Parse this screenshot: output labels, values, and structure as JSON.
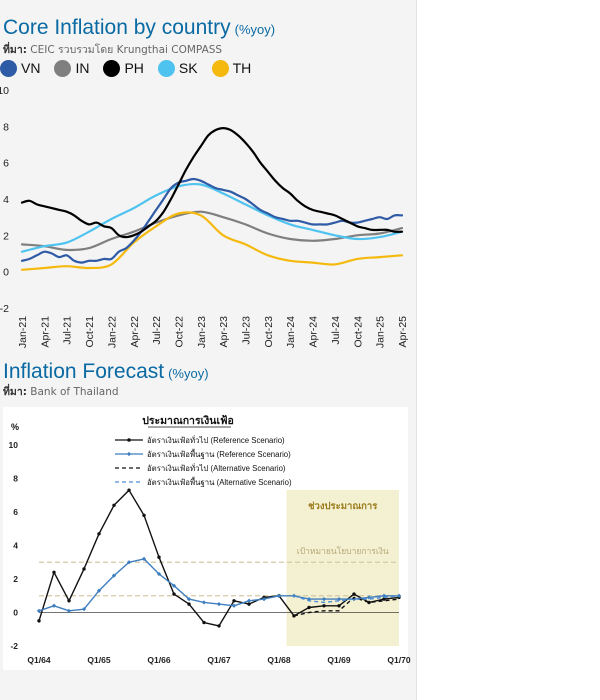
{
  "chart1": {
    "title": "Core Inflation by country",
    "unit": "(%yoy)",
    "source_label": "ที่มา:",
    "source_text": "CEIC รวบรวมโดย Krungthai COMPASS",
    "colors": {
      "VN": "#2f5aa6",
      "IN": "#7f7f7f",
      "PH": "#000000",
      "SK": "#4fc3f0",
      "TH": "#f5b90e"
    },
    "chart_data": {
      "type": "line",
      "title": "Core Inflation by country",
      "ylim": [
        -2,
        10
      ],
      "yticks": [
        "-2",
        "0",
        "2",
        "4",
        "6",
        "8",
        "10"
      ],
      "x_labels": [
        "Jan-21",
        "Apr-21",
        "Jul-21",
        "Oct-21",
        "Jan-22",
        "Apr-22",
        "Jul-22",
        "Oct-22",
        "Jan-23",
        "Apr-23",
        "Jul-23",
        "Oct-23",
        "Jan-24",
        "Apr-24",
        "Jul-24",
        "Oct-24",
        "Jan-25",
        "Apr-25"
      ],
      "legend": "top",
      "series": [
        {
          "name": "VN",
          "points": [
            [
              0,
              0.6
            ],
            [
              1,
              0.7
            ],
            [
              2,
              0.9
            ],
            [
              3,
              1.1
            ],
            [
              4,
              1.0
            ],
            [
              5,
              0.8
            ],
            [
              6,
              0.9
            ],
            [
              7,
              0.6
            ],
            [
              8,
              0.5
            ],
            [
              9,
              0.6
            ],
            [
              10,
              0.6
            ],
            [
              11,
              0.7
            ],
            [
              12,
              0.7
            ],
            [
              13,
              1.1
            ],
            [
              14,
              1.3
            ],
            [
              15,
              1.7
            ],
            [
              16,
              2.2
            ],
            [
              17,
              2.8
            ],
            [
              18,
              3.4
            ],
            [
              19,
              4.0
            ],
            [
              20,
              4.6
            ],
            [
              21,
              4.9
            ],
            [
              22,
              5.0
            ],
            [
              23,
              5.1
            ],
            [
              24,
              5.0
            ],
            [
              25,
              4.8
            ],
            [
              26,
              4.6
            ],
            [
              27,
              4.5
            ],
            [
              28,
              4.4
            ],
            [
              29,
              4.2
            ],
            [
              30,
              4.0
            ],
            [
              31,
              3.7
            ],
            [
              32,
              3.4
            ],
            [
              33,
              3.2
            ],
            [
              34,
              3.0
            ],
            [
              35,
              2.9
            ],
            [
              36,
              2.8
            ],
            [
              37,
              2.8
            ],
            [
              38,
              2.7
            ],
            [
              39,
              2.6
            ],
            [
              40,
              2.6
            ],
            [
              41,
              2.6
            ],
            [
              42,
              2.7
            ],
            [
              43,
              2.8
            ],
            [
              44,
              2.7
            ],
            [
              45,
              2.7
            ],
            [
              46,
              2.8
            ],
            [
              47,
              2.9
            ],
            [
              48,
              3.0
            ],
            [
              49,
              2.9
            ],
            [
              50,
              3.1
            ],
            [
              51,
              3.1
            ]
          ]
        },
        {
          "name": "IN",
          "points": [
            [
              0,
              1.5
            ],
            [
              3,
              1.4
            ],
            [
              6,
              1.2
            ],
            [
              9,
              1.3
            ],
            [
              12,
              1.8
            ],
            [
              15,
              2.2
            ],
            [
              18,
              2.7
            ],
            [
              21,
              3.1
            ],
            [
              24,
              3.3
            ],
            [
              27,
              3.0
            ],
            [
              30,
              2.6
            ],
            [
              33,
              2.1
            ],
            [
              36,
              1.8
            ],
            [
              39,
              1.7
            ],
            [
              42,
              1.8
            ],
            [
              45,
              2.0
            ],
            [
              48,
              2.1
            ],
            [
              51,
              2.4
            ]
          ]
        },
        {
          "name": "PH",
          "points": [
            [
              0,
              3.8
            ],
            [
              1,
              3.9
            ],
            [
              2,
              3.7
            ],
            [
              3,
              3.6
            ],
            [
              4,
              3.5
            ],
            [
              5,
              3.4
            ],
            [
              6,
              3.3
            ],
            [
              7,
              3.1
            ],
            [
              8,
              2.8
            ],
            [
              9,
              2.6
            ],
            [
              10,
              2.7
            ],
            [
              11,
              2.5
            ],
            [
              12,
              2.4
            ],
            [
              13,
              2.0
            ],
            [
              14,
              1.9
            ],
            [
              15,
              2.0
            ],
            [
              16,
              2.2
            ],
            [
              17,
              2.5
            ],
            [
              18,
              2.8
            ],
            [
              19,
              3.3
            ],
            [
              20,
              4.0
            ],
            [
              21,
              4.8
            ],
            [
              22,
              5.6
            ],
            [
              23,
              6.3
            ],
            [
              24,
              6.9
            ],
            [
              25,
              7.5
            ],
            [
              26,
              7.8
            ],
            [
              27,
              7.9
            ],
            [
              28,
              7.8
            ],
            [
              29,
              7.5
            ],
            [
              30,
              7.1
            ],
            [
              31,
              6.6
            ],
            [
              32,
              6.0
            ],
            [
              33,
              5.5
            ],
            [
              34,
              5.0
            ],
            [
              35,
              4.6
            ],
            [
              36,
              4.3
            ],
            [
              37,
              3.9
            ],
            [
              38,
              3.6
            ],
            [
              39,
              3.4
            ],
            [
              40,
              3.3
            ],
            [
              41,
              3.2
            ],
            [
              42,
              3.1
            ],
            [
              43,
              2.9
            ],
            [
              44,
              2.7
            ],
            [
              45,
              2.5
            ],
            [
              46,
              2.4
            ],
            [
              47,
              2.3
            ],
            [
              48,
              2.3
            ],
            [
              49,
              2.3
            ],
            [
              50,
              2.2
            ],
            [
              51,
              2.2
            ]
          ]
        },
        {
          "name": "SK",
          "points": [
            [
              0,
              1.1
            ],
            [
              3,
              1.4
            ],
            [
              6,
              1.6
            ],
            [
              9,
              2.2
            ],
            [
              12,
              2.9
            ],
            [
              15,
              3.5
            ],
            [
              18,
              4.2
            ],
            [
              21,
              4.7
            ],
            [
              24,
              4.8
            ],
            [
              27,
              4.3
            ],
            [
              30,
              3.7
            ],
            [
              33,
              3.1
            ],
            [
              36,
              2.6
            ],
            [
              39,
              2.3
            ],
            [
              42,
              2.0
            ],
            [
              45,
              1.8
            ],
            [
              48,
              1.9
            ],
            [
              51,
              2.2
            ]
          ]
        },
        {
          "name": "TH",
          "points": [
            [
              0,
              0.1
            ],
            [
              3,
              0.2
            ],
            [
              6,
              0.3
            ],
            [
              9,
              0.2
            ],
            [
              12,
              0.4
            ],
            [
              15,
              1.6
            ],
            [
              18,
              2.5
            ],
            [
              21,
              3.2
            ],
            [
              24,
              3.1
            ],
            [
              27,
              2.0
            ],
            [
              30,
              1.5
            ],
            [
              33,
              0.9
            ],
            [
              36,
              0.6
            ],
            [
              39,
              0.5
            ],
            [
              42,
              0.4
            ],
            [
              45,
              0.7
            ],
            [
              48,
              0.8
            ],
            [
              51,
              0.9
            ]
          ]
        }
      ]
    }
  },
  "chart2": {
    "title": "Inflation Forecast",
    "unit": "(%yoy)",
    "source_label": "ที่มา:",
    "source_text": "Bank of Thailand",
    "chart_data": {
      "type": "line",
      "title": "ประมาณการเงินเฟ้อ",
      "ylabel": "%",
      "ylim": [
        -2,
        10
      ],
      "yticks": [
        "-2",
        "0",
        "2",
        "4",
        "6",
        "8",
        "10"
      ],
      "x_labels": [
        "Q1/64",
        "Q1/65",
        "Q1/66",
        "Q1/67",
        "Q1/68",
        "Q1/69",
        "Q1/70"
      ],
      "forecast_label": "ช่วงประมาณการ",
      "target_label": "เป้าหมายนโยบายการเงิน",
      "target_band": [
        1,
        3
      ],
      "forecast_start": 17,
      "legend": "top-center",
      "series": [
        {
          "name": "อัตราเงินเฟ้อทั่วไป (Reference Scenario)",
          "points": [
            [
              0,
              -0.5
            ],
            [
              1,
              2.4
            ],
            [
              2,
              0.7
            ],
            [
              3,
              2.6
            ],
            [
              4,
              4.7
            ],
            [
              5,
              6.4
            ],
            [
              6,
              7.3
            ],
            [
              7,
              5.8
            ],
            [
              8,
              3.3
            ],
            [
              9,
              1.1
            ],
            [
              10,
              0.5
            ],
            [
              11,
              -0.6
            ],
            [
              12,
              -0.8
            ],
            [
              13,
              0.7
            ],
            [
              14,
              0.5
            ],
            [
              15,
              0.9
            ],
            [
              16,
              1.0
            ],
            [
              17,
              -0.2
            ],
            [
              18,
              0.3
            ],
            [
              19,
              0.4
            ],
            [
              20,
              0.4
            ],
            [
              21,
              1.1
            ],
            [
              22,
              0.6
            ],
            [
              23,
              0.8
            ],
            [
              24,
              0.9
            ]
          ]
        },
        {
          "name": "อัตราเงินเฟ้อพื้นฐาน (Reference Scenario)",
          "points": [
            [
              0,
              0.1
            ],
            [
              1,
              0.4
            ],
            [
              2,
              0.1
            ],
            [
              3,
              0.2
            ],
            [
              4,
              1.3
            ],
            [
              5,
              2.2
            ],
            [
              6,
              3.0
            ],
            [
              7,
              3.2
            ],
            [
              8,
              2.3
            ],
            [
              9,
              1.6
            ],
            [
              10,
              0.8
            ],
            [
              11,
              0.6
            ],
            [
              12,
              0.5
            ],
            [
              13,
              0.4
            ],
            [
              14,
              0.7
            ],
            [
              15,
              0.8
            ],
            [
              16,
              1.0
            ],
            [
              17,
              1.0
            ],
            [
              18,
              0.8
            ],
            [
              19,
              0.8
            ],
            [
              20,
              0.8
            ],
            [
              21,
              0.8
            ],
            [
              22,
              0.9
            ],
            [
              23,
              1.0
            ],
            [
              24,
              1.0
            ]
          ]
        },
        {
          "name": "อัตราเงินเฟ้อทั่วไป (Alternative Scenario)",
          "points": [
            [
              17,
              -0.2
            ],
            [
              18,
              0.0
            ],
            [
              19,
              0.1
            ],
            [
              20,
              0.1
            ],
            [
              21,
              0.9
            ],
            [
              22,
              0.6
            ],
            [
              23,
              0.7
            ],
            [
              24,
              0.8
            ]
          ]
        },
        {
          "name": "อัตราเงินเฟ้อพื้นฐาน (Alternative Scenario)",
          "points": [
            [
              17,
              1.0
            ],
            [
              18,
              0.7
            ],
            [
              19,
              0.6
            ],
            [
              20,
              0.7
            ],
            [
              21,
              0.8
            ],
            [
              22,
              0.8
            ],
            [
              23,
              0.9
            ],
            [
              24,
              1.0
            ]
          ]
        }
      ]
    }
  }
}
